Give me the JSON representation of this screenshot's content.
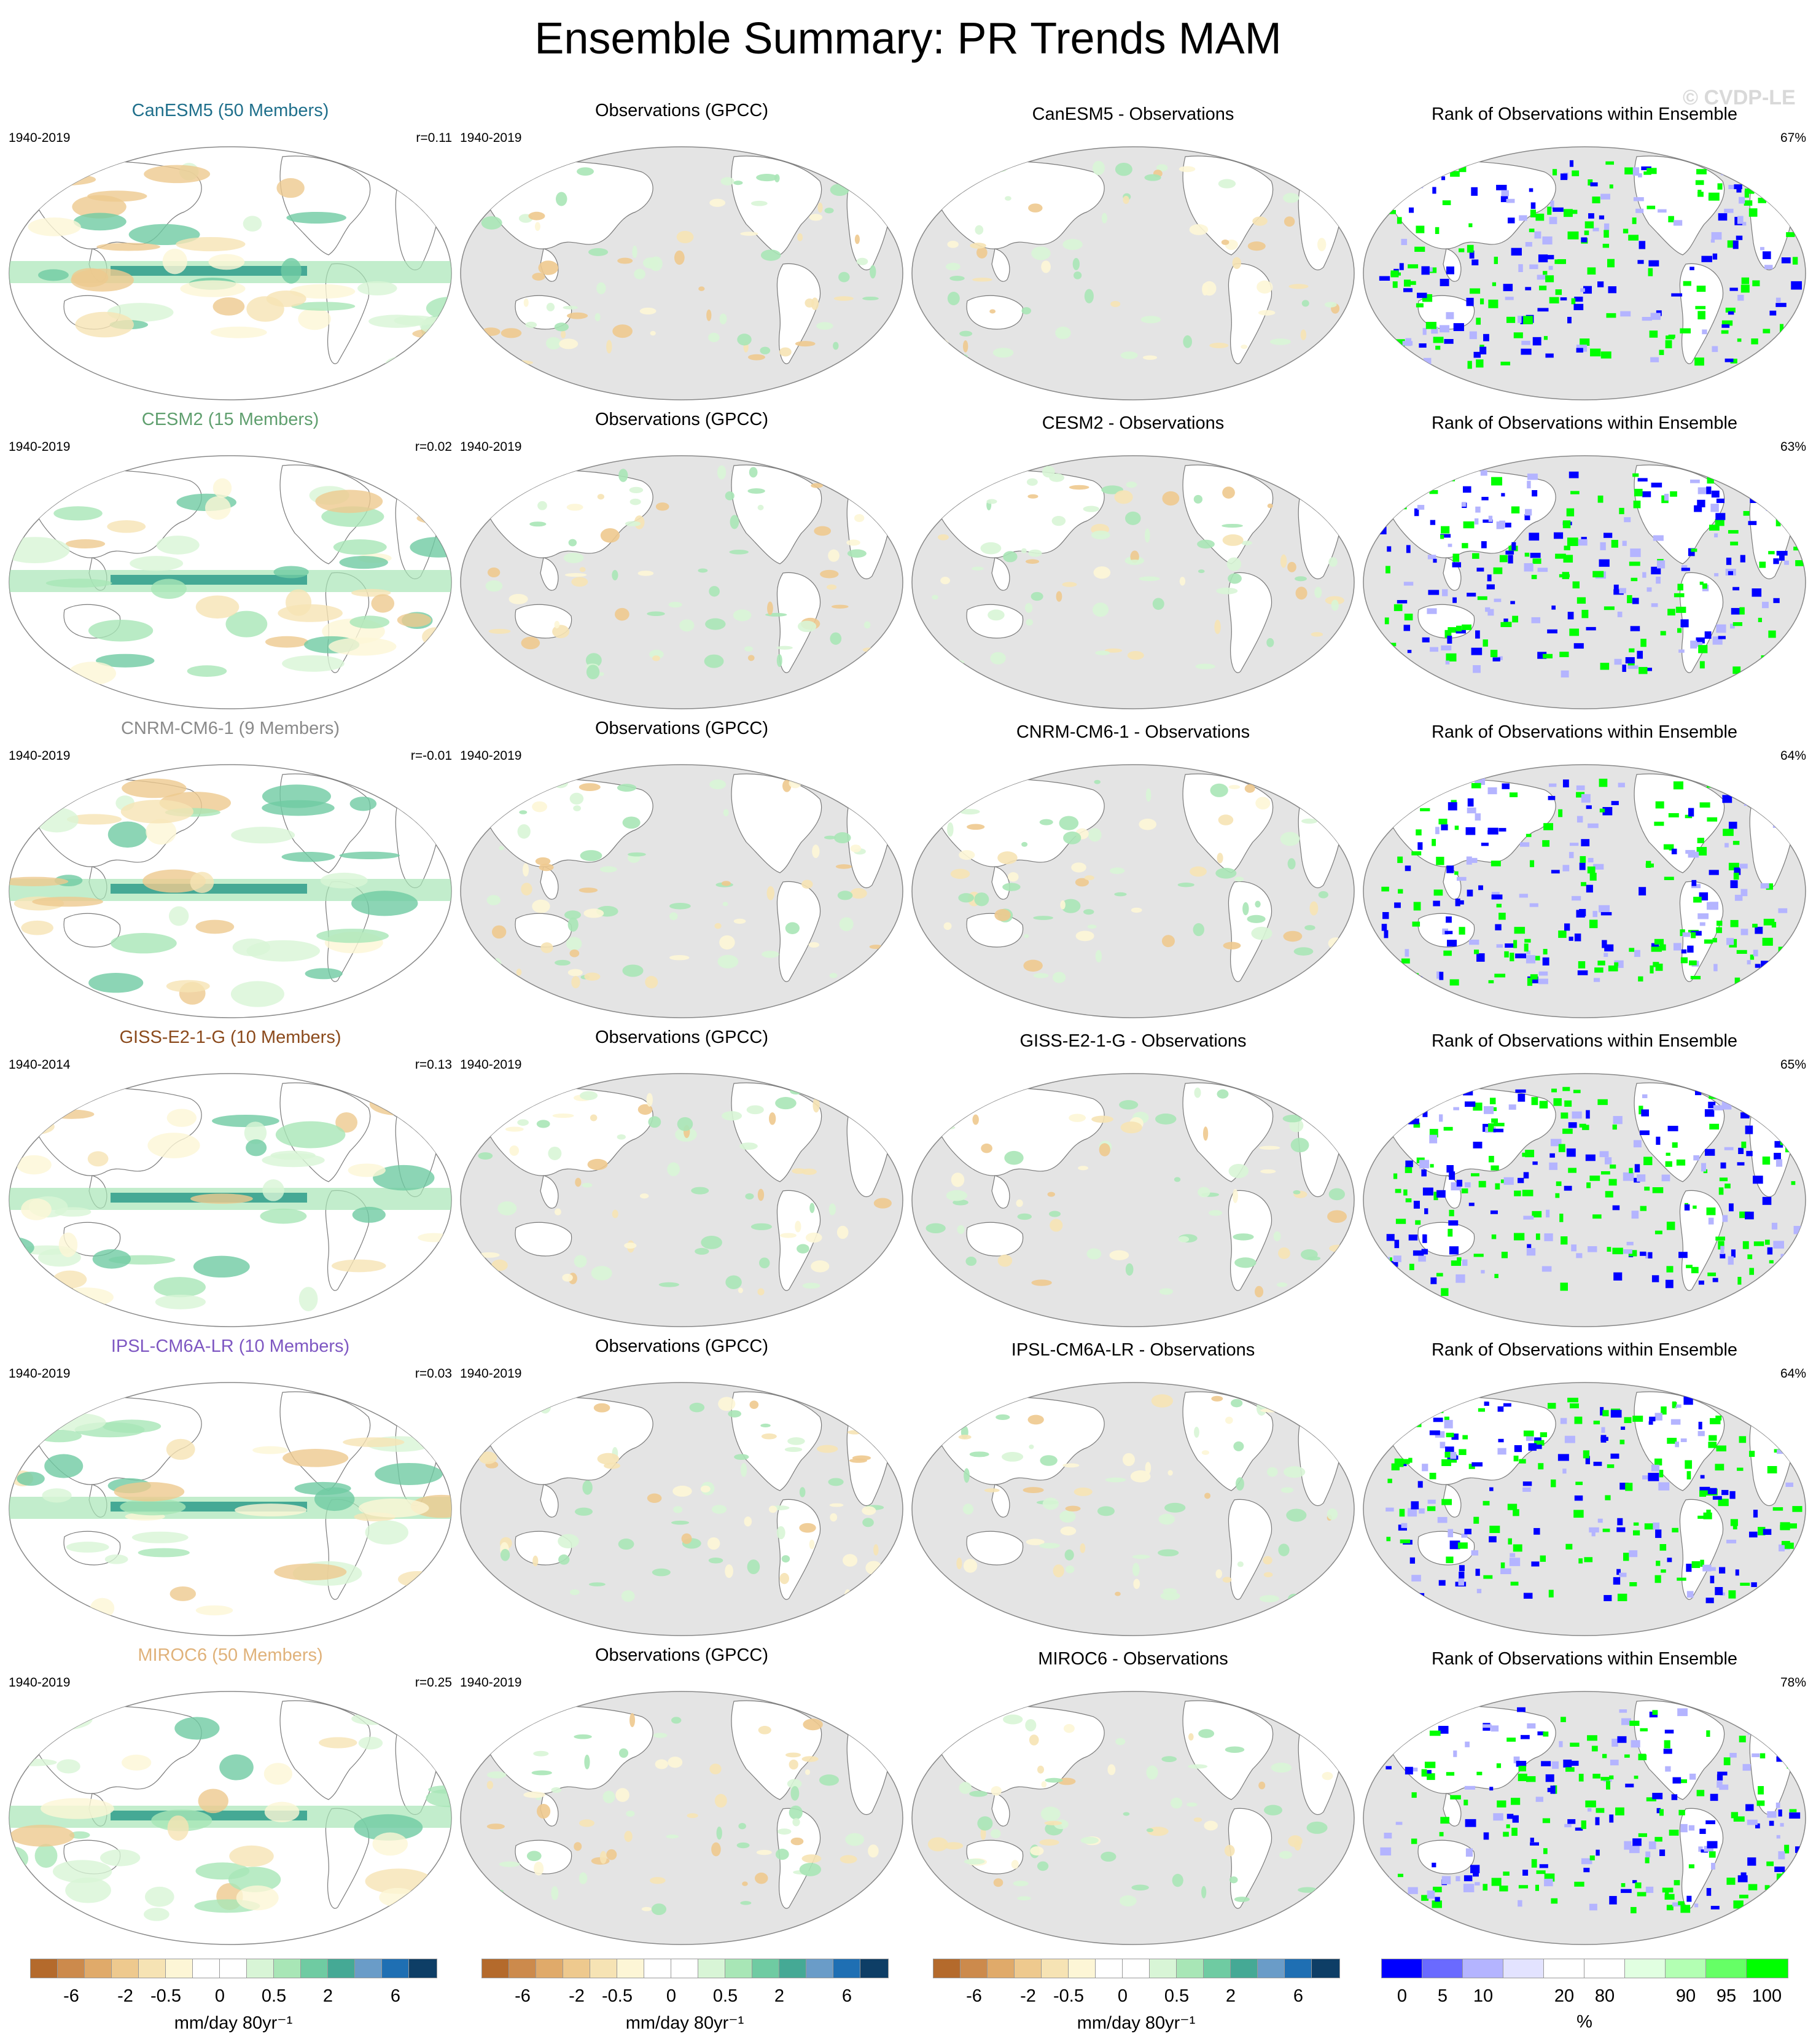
{
  "title": "Ensemble Summary: PR Trends MAM",
  "watermark": "© CVDP-LE",
  "rows": [
    {
      "model": "CanESM5 (50 Members)",
      "color": "#1f6f8b",
      "years": "1940-2019",
      "r": "r=0.11",
      "obs": "Observations (GPCC)",
      "obs_years": "1940-2019",
      "diff": "CanESM5 - Observations",
      "rank": "Rank of Observations within Ensemble",
      "pct": "67%"
    },
    {
      "model": "CESM2 (15 Members)",
      "color": "#5f9f6e",
      "years": "1940-2019",
      "r": "r=0.02",
      "obs": "Observations (GPCC)",
      "obs_years": "1940-2019",
      "diff": "CESM2 - Observations",
      "rank": "Rank of Observations within Ensemble",
      "pct": "63%"
    },
    {
      "model": "CNRM-CM6-1 (9 Members)",
      "color": "#8a8a8a",
      "years": "1940-2019",
      "r": "r=-0.01",
      "obs": "Observations (GPCC)",
      "obs_years": "1940-2019",
      "diff": "CNRM-CM6-1 - Observations",
      "rank": "Rank of Observations within Ensemble",
      "pct": "64%"
    },
    {
      "model": "GISS-E2-1-G (10 Members)",
      "color": "#8b4a1c",
      "years": "1940-2014",
      "r": "r=0.13",
      "obs": "Observations (GPCC)",
      "obs_years": "1940-2019",
      "diff": "GISS-E2-1-G - Observations",
      "rank": "Rank of Observations within Ensemble",
      "pct": "65%"
    },
    {
      "model": "IPSL-CM6A-LR (10 Members)",
      "color": "#7e57c2",
      "years": "1940-2019",
      "r": "r=0.03",
      "obs": "Observations (GPCC)",
      "obs_years": "1940-2019",
      "diff": "IPSL-CM6A-LR - Observations",
      "rank": "Rank of Observations within Ensemble",
      "pct": "64%"
    },
    {
      "model": "MIROC6 (50 Members)",
      "color": "#e0b27a",
      "years": "1940-2019",
      "r": "r=0.25",
      "obs": "Observations (GPCC)",
      "obs_years": "1940-2019",
      "diff": "MIROC6 - Observations",
      "rank": "Rank of Observations within Ensemble",
      "pct": "78%"
    }
  ],
  "colorbars": {
    "trend": {
      "colors": [
        "#b46a2c",
        "#cc8a4c",
        "#e0aa6a",
        "#eec98e",
        "#f6e3b4",
        "#fdf6d6",
        "#ffffff",
        "#ffffff",
        "#d8f5d6",
        "#a8e6b6",
        "#6fcba2",
        "#45a995",
        "#6a9cc8",
        "#1f6fb3",
        "#0e3e66"
      ],
      "ticks": [
        "-6",
        "-2",
        "-0.5",
        "0",
        "0.5",
        "2",
        "6"
      ],
      "units": "mm/day 80yr⁻¹"
    },
    "rank": {
      "colors": [
        "#0000ff",
        "#6a6aff",
        "#b4b4ff",
        "#e3e3ff",
        "#ffffff",
        "#ffffff",
        "#e1ffe1",
        "#b3ffb3",
        "#66ff66",
        "#00ff00"
      ],
      "ticks": [
        "0",
        "5",
        "10",
        "20",
        "80",
        "90",
        "95",
        "100"
      ],
      "units": "%"
    }
  },
  "legend_colors": {
    "land_grey": "#e3e3e3",
    "coast": "#7a7a7a"
  }
}
